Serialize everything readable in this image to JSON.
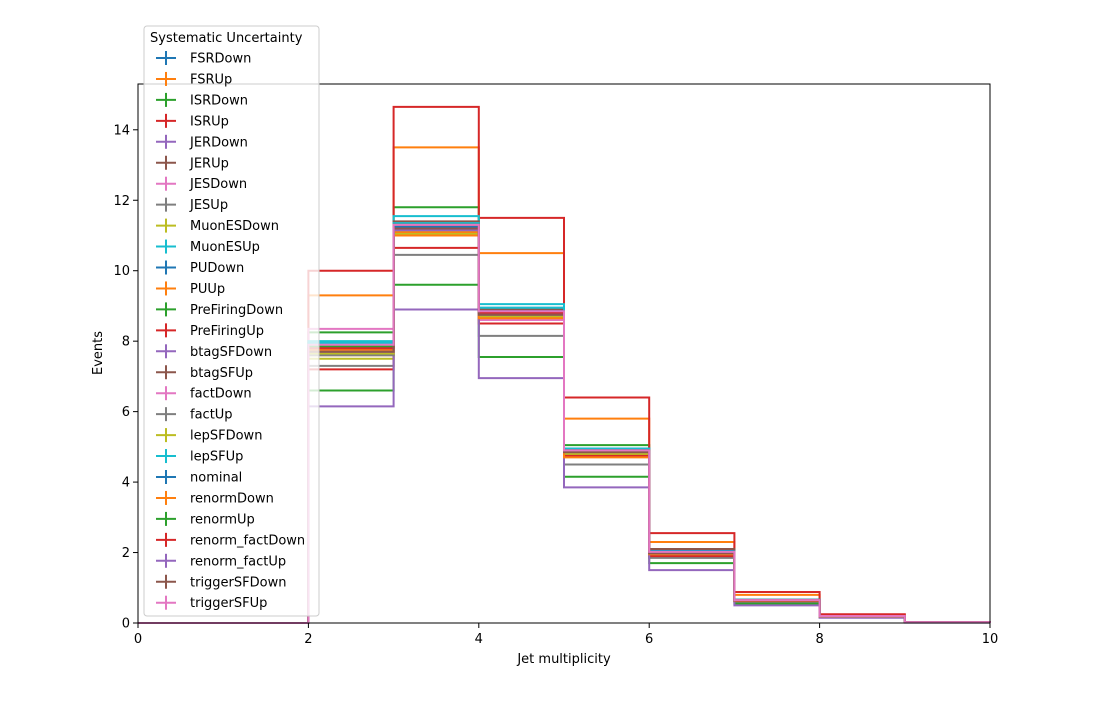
{
  "chart_data": {
    "type": "line",
    "drawstyle": "steps",
    "xlabel": "Jet multiplicity",
    "ylabel": "Events",
    "xlim": [
      0,
      10
    ],
    "ylim": [
      0,
      15.3
    ],
    "x_ticks": [
      0,
      2,
      4,
      6,
      8,
      10
    ],
    "x_tick_labels": [
      "0",
      "2",
      "4",
      "6",
      "8",
      "10"
    ],
    "y_ticks": [
      0,
      2,
      4,
      6,
      8,
      10,
      12,
      14
    ],
    "y_tick_labels": [
      "0",
      "2",
      "4",
      "6",
      "8",
      "10",
      "12",
      "14"
    ],
    "bin_edges": [
      0,
      1,
      2,
      3,
      4,
      5,
      6,
      7,
      8,
      9,
      10
    ],
    "grid": false,
    "legend": {
      "title": "Systematic Uncertainty",
      "position": "upper-left, outside above plot"
    },
    "series": [
      {
        "name": "FSRDown",
        "color": "#1f77b4",
        "values": [
          0,
          0,
          7.9,
          11.3,
          8.85,
          4.95,
          2.0,
          0.65,
          0.2,
          0.02
        ]
      },
      {
        "name": "FSRUp",
        "color": "#ff7f0e",
        "values": [
          0,
          0,
          9.3,
          13.5,
          10.5,
          5.8,
          2.3,
          0.8,
          0.23,
          0.02
        ]
      },
      {
        "name": "ISRDown",
        "color": "#2ca02c",
        "values": [
          0,
          0,
          8.25,
          11.8,
          8.7,
          5.05,
          2.0,
          0.65,
          0.2,
          0.02
        ]
      },
      {
        "name": "ISRUp",
        "color": "#d62728",
        "values": [
          0,
          0,
          10.0,
          14.65,
          11.5,
          6.4,
          2.55,
          0.88,
          0.25,
          0.03
        ]
      },
      {
        "name": "JERDown",
        "color": "#9467bd",
        "values": [
          0,
          0,
          7.8,
          11.3,
          8.8,
          4.9,
          2.05,
          0.65,
          0.2,
          0.02
        ]
      },
      {
        "name": "JERUp",
        "color": "#8c564b",
        "values": [
          0,
          0,
          7.7,
          11.25,
          8.75,
          4.85,
          2.0,
          0.64,
          0.2,
          0.02
        ]
      },
      {
        "name": "JESDown",
        "color": "#e377c2",
        "values": [
          0,
          0,
          8.35,
          11.2,
          8.6,
          4.75,
          1.95,
          0.62,
          0.19,
          0.02
        ]
      },
      {
        "name": "JESUp",
        "color": "#7f7f7f",
        "values": [
          0,
          0,
          7.3,
          10.45,
          8.15,
          4.5,
          1.85,
          0.6,
          0.18,
          0.02
        ]
      },
      {
        "name": "MuonESDown",
        "color": "#bcbd22",
        "values": [
          0,
          0,
          7.5,
          11.05,
          8.7,
          4.8,
          1.95,
          0.63,
          0.19,
          0.02
        ]
      },
      {
        "name": "MuonESUp",
        "color": "#17becf",
        "values": [
          0,
          0,
          8.0,
          11.55,
          9.05,
          4.95,
          2.05,
          0.66,
          0.2,
          0.02
        ]
      },
      {
        "name": "PUDown",
        "color": "#1f77b4",
        "values": [
          0,
          0,
          7.85,
          11.35,
          8.95,
          4.95,
          2.05,
          0.66,
          0.2,
          0.02
        ]
      },
      {
        "name": "PUUp",
        "color": "#ff7f0e",
        "values": [
          0,
          0,
          7.6,
          11.1,
          8.7,
          4.75,
          1.95,
          0.63,
          0.19,
          0.02
        ]
      },
      {
        "name": "PreFiringDown",
        "color": "#2ca02c",
        "values": [
          0,
          0,
          6.6,
          9.6,
          7.55,
          4.15,
          1.7,
          0.55,
          0.17,
          0.02
        ]
      },
      {
        "name": "PreFiringUp",
        "color": "#d62728",
        "values": [
          0,
          0,
          7.2,
          10.65,
          8.5,
          4.75,
          1.9,
          0.62,
          0.19,
          0.02
        ]
      },
      {
        "name": "btagSFDown",
        "color": "#9467bd",
        "values": [
          0,
          0,
          6.15,
          8.9,
          6.95,
          3.85,
          1.5,
          0.5,
          0.15,
          0.01
        ]
      },
      {
        "name": "btagSFUp",
        "color": "#8c564b",
        "values": [
          0,
          0,
          7.8,
          11.4,
          8.9,
          4.9,
          2.1,
          0.66,
          0.2,
          0.02
        ]
      },
      {
        "name": "factDown",
        "color": "#e377c2",
        "values": [
          0,
          0,
          7.7,
          11.3,
          8.8,
          4.9,
          2.0,
          0.65,
          0.2,
          0.02
        ]
      },
      {
        "name": "factUp",
        "color": "#7f7f7f",
        "values": [
          0,
          0,
          7.6,
          11.2,
          8.75,
          4.85,
          1.98,
          0.64,
          0.2,
          0.02
        ]
      },
      {
        "name": "lepSFDown",
        "color": "#bcbd22",
        "values": [
          0,
          0,
          7.65,
          11.15,
          8.7,
          4.8,
          1.97,
          0.64,
          0.19,
          0.02
        ]
      },
      {
        "name": "lepSFUp",
        "color": "#17becf",
        "values": [
          0,
          0,
          7.95,
          11.35,
          8.95,
          4.95,
          2.03,
          0.66,
          0.2,
          0.02
        ]
      },
      {
        "name": "nominal",
        "color": "#1f77b4",
        "values": [
          0,
          0,
          7.8,
          11.25,
          8.85,
          4.9,
          2.0,
          0.65,
          0.2,
          0.02
        ]
      },
      {
        "name": "renormDown",
        "color": "#ff7f0e",
        "values": [
          0,
          0,
          7.75,
          11.0,
          8.65,
          4.7,
          1.95,
          0.63,
          0.19,
          0.02
        ]
      },
      {
        "name": "renormUp",
        "color": "#2ca02c",
        "values": [
          0,
          0,
          7.85,
          11.3,
          8.8,
          4.9,
          2.0,
          0.65,
          0.2,
          0.02
        ]
      },
      {
        "name": "renorm_factDown",
        "color": "#d62728",
        "values": [
          0,
          0,
          7.8,
          11.3,
          8.8,
          4.9,
          2.0,
          0.65,
          0.2,
          0.02
        ]
      },
      {
        "name": "renorm_factUp",
        "color": "#9467bd",
        "values": [
          0,
          0,
          7.7,
          11.15,
          8.75,
          4.85,
          1.98,
          0.64,
          0.2,
          0.02
        ]
      },
      {
        "name": "triggerSFDown",
        "color": "#8c564b",
        "values": [
          0,
          0,
          7.7,
          11.2,
          8.75,
          4.85,
          1.98,
          0.64,
          0.2,
          0.02
        ]
      },
      {
        "name": "triggerSFUp",
        "color": "#e377c2",
        "values": [
          0,
          0,
          7.9,
          11.3,
          8.85,
          4.9,
          2.02,
          0.65,
          0.2,
          0.02
        ]
      }
    ]
  }
}
